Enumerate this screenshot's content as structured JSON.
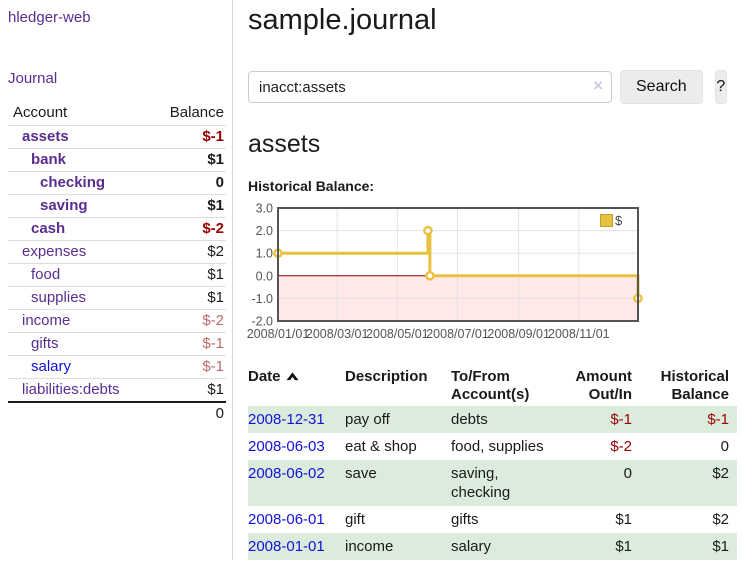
{
  "colors": {
    "link_purple": "#5b2d91",
    "link_blue": "#1111dd",
    "negative_strong": "#990000",
    "negative_soft": "#c06a6a",
    "row_stripe_green": "#dcecdc",
    "chart_line_gold": "#e9c13f"
  },
  "sidebar": {
    "brand": "hledger-web",
    "journal_link": "Journal",
    "accounts_table": {
      "col_account": "Account",
      "col_balance": "Balance",
      "rows": [
        {
          "account": "assets",
          "balance": "$-1",
          "indent": 1,
          "bold": true,
          "balance_class": "neg",
          "link_class": "purple"
        },
        {
          "account": "bank",
          "balance": "$1",
          "indent": 2,
          "bold": true,
          "balance_class": "",
          "link_class": "purple"
        },
        {
          "account": "checking",
          "balance": "0",
          "indent": 3,
          "bold": true,
          "balance_class": "",
          "link_class": "purple"
        },
        {
          "account": "saving",
          "balance": "$1",
          "indent": 3,
          "bold": true,
          "balance_class": "",
          "link_class": "purple"
        },
        {
          "account": "cash",
          "balance": "$-2",
          "indent": 2,
          "bold": true,
          "balance_class": "neg",
          "link_class": "purple"
        },
        {
          "account": "expenses",
          "balance": "$2",
          "indent": 1,
          "bold": false,
          "balance_class": "",
          "link_class": "purple"
        },
        {
          "account": "food",
          "balance": "$1",
          "indent": 2,
          "bold": false,
          "balance_class": "",
          "link_class": "purple"
        },
        {
          "account": "supplies",
          "balance": "$1",
          "indent": 2,
          "bold": false,
          "balance_class": "",
          "link_class": "purple"
        },
        {
          "account": "income",
          "balance": "$-2",
          "indent": 1,
          "bold": false,
          "balance_class": "neg-soft",
          "link_class": "purple"
        },
        {
          "account": "gifts",
          "balance": "$-1",
          "indent": 2,
          "bold": false,
          "balance_class": "neg-soft",
          "link_class": "purple"
        },
        {
          "account": "salary",
          "balance": "$-1",
          "indent": 2,
          "bold": false,
          "balance_class": "neg-soft",
          "link_class": "blue"
        },
        {
          "account": "liabilities:debts",
          "balance": "$1",
          "indent": 1,
          "bold": false,
          "balance_class": "",
          "link_class": "purple"
        }
      ],
      "total": "0"
    }
  },
  "main": {
    "title": "sample.journal",
    "search": {
      "value": "inacct:assets",
      "clear_label": "×",
      "search_button": "Search",
      "help_button": "?"
    },
    "account_heading": "assets",
    "chart_label": "Historical Balance:",
    "register_table": {
      "columns": [
        "Date",
        "Description",
        "To/From Account(s)",
        "Amount Out/In",
        "Historical Balance"
      ],
      "rows": [
        {
          "date": "2008-12-31",
          "description": "pay off",
          "accounts": "debts",
          "amount": "$-1",
          "amount_class": "neg",
          "balance": "$-1",
          "balance_class": "neg"
        },
        {
          "date": "2008-06-03",
          "description": "eat & shop",
          "accounts": "food, supplies",
          "amount": "$-2",
          "amount_class": "neg",
          "balance": "0",
          "balance_class": ""
        },
        {
          "date": "2008-06-02",
          "description": "save",
          "accounts": "saving, checking",
          "amount": "0",
          "amount_class": "",
          "balance": "$2",
          "balance_class": ""
        },
        {
          "date": "2008-06-01",
          "description": "gift",
          "accounts": "gifts",
          "amount": "$1",
          "amount_class": "",
          "balance": "$2",
          "balance_class": ""
        },
        {
          "date": "2008-01-01",
          "description": "income",
          "accounts": "salary",
          "amount": "$1",
          "amount_class": "",
          "balance": "$1",
          "balance_class": ""
        }
      ]
    }
  },
  "chart_data": {
    "type": "line",
    "title": "Historical Balance",
    "legend": {
      "label": "$",
      "position": "top-right",
      "swatch_color": "#e9c13f"
    },
    "series": [
      {
        "name": "$",
        "color": "#e9c13f",
        "step": true,
        "points": [
          [
            "2008-01-01",
            1
          ],
          [
            "2008-06-01",
            2
          ],
          [
            "2008-06-03",
            0
          ],
          [
            "2008-12-31",
            -1
          ]
        ]
      }
    ],
    "x_range": [
      "2008-01-01",
      "2008-12-31"
    ],
    "x_ticks": [
      {
        "date": "2008-01-01",
        "label": "2008/01/01"
      },
      {
        "date": "2008-03-01",
        "label": "2008/03/01"
      },
      {
        "date": "2008-05-01",
        "label": "2008/05/01"
      },
      {
        "date": "2008-07-01",
        "label": "2008/07/01"
      },
      {
        "date": "2008-09-01",
        "label": "2008/09/01"
      },
      {
        "date": "2008-11-01",
        "label": "2008/11/01"
      }
    ],
    "y_range": [
      -2,
      3
    ],
    "y_ticks": [
      {
        "v": 3,
        "label": "3.0"
      },
      {
        "v": 2,
        "label": "2.0"
      },
      {
        "v": 1,
        "label": "1.0"
      },
      {
        "v": 0,
        "label": "0.0"
      },
      {
        "v": -1,
        "label": "-1.0"
      },
      {
        "v": -2,
        "label": "-2.0"
      }
    ],
    "grid": true,
    "negative_region_fill": "rgba(255,0,0,0.09)",
    "zero_line_color": "#8b0000",
    "border_color": "#545454"
  }
}
